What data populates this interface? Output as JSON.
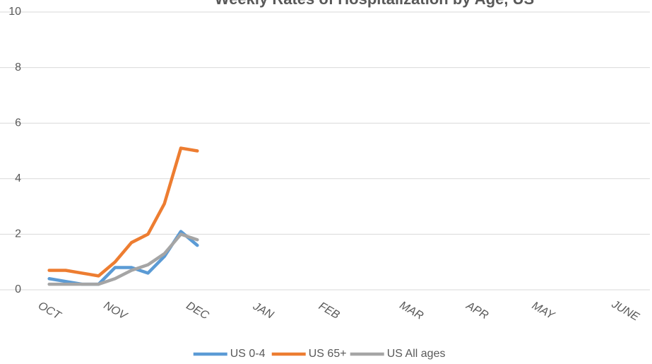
{
  "chart_data": {
    "type": "line",
    "title": "Weekly Rates of Hospitalization by Age, US",
    "categories": [
      "OCT",
      null,
      null,
      null,
      "NOV",
      null,
      null,
      null,
      null,
      "DEC",
      null,
      null,
      null,
      "JAN",
      null,
      null,
      null,
      "FEB",
      null,
      null,
      null,
      null,
      "MAR",
      null,
      null,
      null,
      "APR",
      null,
      null,
      null,
      "MAY",
      null,
      null,
      null,
      null,
      "JUNE",
      null
    ],
    "series": [
      {
        "name": "US 0-4",
        "color": "#5b9bd5",
        "values": [
          0.4,
          0.3,
          0.2,
          0.2,
          0.8,
          0.8,
          0.6,
          1.2,
          2.1,
          1.6,
          null,
          null,
          null,
          null,
          null,
          null,
          null,
          null,
          null,
          null,
          null,
          null,
          null,
          null,
          null,
          null,
          null,
          null,
          null,
          null,
          null,
          null,
          null,
          null,
          null,
          null,
          null
        ]
      },
      {
        "name": "US 65+",
        "color": "#ed7d31",
        "values": [
          0.7,
          0.7,
          0.6,
          0.5,
          1.0,
          1.7,
          2.0,
          3.1,
          5.1,
          5.0,
          null,
          null,
          null,
          null,
          null,
          null,
          null,
          null,
          null,
          null,
          null,
          null,
          null,
          null,
          null,
          null,
          null,
          null,
          null,
          null,
          null,
          null,
          null,
          null,
          null,
          null,
          null
        ]
      },
      {
        "name": "US All ages",
        "color": "#a5a5a5",
        "values": [
          0.2,
          0.2,
          0.2,
          0.2,
          0.4,
          0.7,
          0.9,
          1.3,
          2.0,
          1.8,
          null,
          null,
          null,
          null,
          null,
          null,
          null,
          null,
          null,
          null,
          null,
          null,
          null,
          null,
          null,
          null,
          null,
          null,
          null,
          null,
          null,
          null,
          null,
          null,
          null,
          null,
          null
        ]
      }
    ],
    "ylim": [
      0,
      10
    ],
    "yticks": [
      0,
      2,
      4,
      6,
      8,
      10
    ],
    "grid": true
  }
}
